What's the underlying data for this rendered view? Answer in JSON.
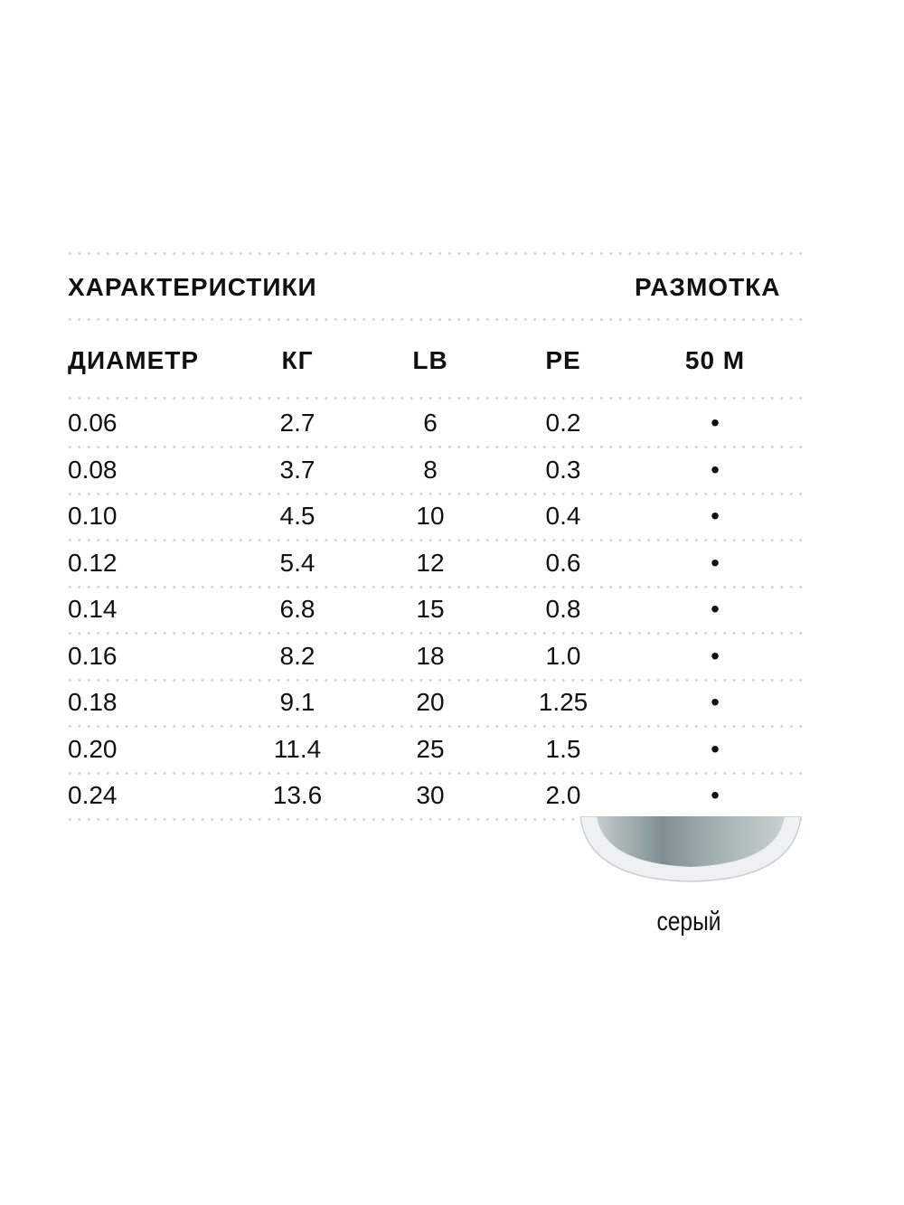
{
  "header": {
    "title": "ХАРАКТЕРИСТИКИ",
    "right_title": "РАЗМОТКА"
  },
  "columns": [
    "ДИАМЕТР",
    "КГ",
    "LB",
    "PE",
    "50 М"
  ],
  "rows": [
    [
      "0.06",
      "2.7",
      "6",
      "0.2",
      "•"
    ],
    [
      "0.08",
      "3.7",
      "8",
      "0.3",
      "•"
    ],
    [
      "0.10",
      "4.5",
      "10",
      "0.4",
      "•"
    ],
    [
      "0.12",
      "5.4",
      "12",
      "0.6",
      "•"
    ],
    [
      "0.14",
      "6.8",
      "15",
      "0.8",
      "•"
    ],
    [
      "0.16",
      "8.2",
      "18",
      "1.0",
      "•"
    ],
    [
      "0.18",
      "9.1",
      "20",
      "1.25",
      "•"
    ],
    [
      "0.20",
      "11.4",
      "25",
      "1.5",
      "•"
    ],
    [
      "0.24",
      "13.6",
      "30",
      "2.0",
      "•"
    ]
  ],
  "spool": {
    "color_label": "серый",
    "color": "#8a9a9c"
  }
}
